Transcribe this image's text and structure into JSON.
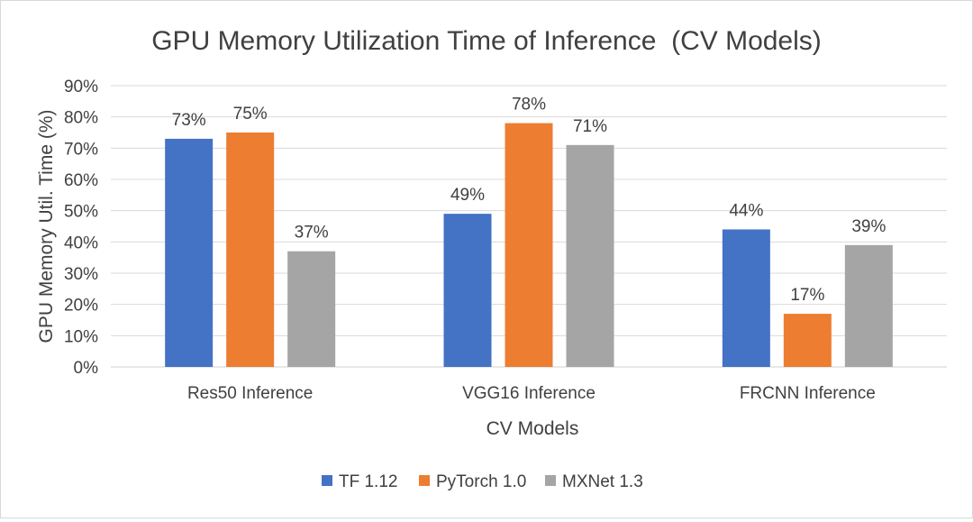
{
  "chart_data": {
    "type": "bar",
    "title": "GPU Memory Utilization Time of Inference  (CV Models)",
    "xlabel": "CV Models",
    "ylabel": "GPU Memory Util. Time (%)",
    "categories": [
      "Res50 Inference",
      "VGG16 Inference",
      "FRCNN Inference"
    ],
    "ylim": [
      0,
      90
    ],
    "ytick_step": 10,
    "ytick_suffix": "%",
    "grid": true,
    "legend_position": "bottom",
    "series": [
      {
        "name": "TF 1.12",
        "color": "#4472c4",
        "values": [
          73,
          49,
          44
        ],
        "labels": [
          "73%",
          "49%",
          "44%"
        ]
      },
      {
        "name": "PyTorch 1.0",
        "color": "#ed7d31",
        "values": [
          75,
          78,
          17
        ],
        "labels": [
          "75%",
          "78%",
          "17%"
        ]
      },
      {
        "name": "MXNet 1.3",
        "color": "#a5a5a5",
        "values": [
          37,
          71,
          39
        ],
        "labels": [
          "37%",
          "71%",
          "39%"
        ]
      }
    ]
  }
}
